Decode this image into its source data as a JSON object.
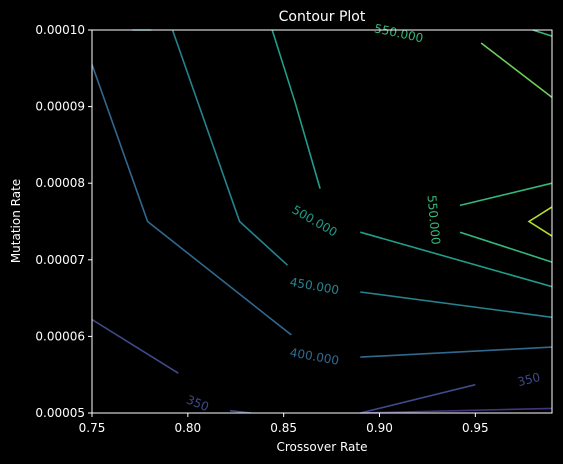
{
  "chart_data": {
    "type": "contour",
    "title": "Contour Plot",
    "xlabel": "Crossover Rate",
    "ylabel": "Mutation Rate",
    "xlim": [
      0.75,
      0.99
    ],
    "ylim": [
      5e-05,
      0.0001
    ],
    "xticks": [
      0.75,
      0.8,
      0.85,
      0.9,
      0.95
    ],
    "xtick_labels": [
      "0.75",
      "0.80",
      "0.85",
      "0.90",
      "0.95"
    ],
    "yticks": [
      5e-05,
      6e-05,
      7e-05,
      8e-05,
      9e-05,
      0.0001
    ],
    "ytick_labels": [
      "0.00005",
      "0.00006",
      "0.00007",
      "0.00008",
      "0.00009",
      "0.00010"
    ],
    "grid": false,
    "background": "#000000",
    "levels": [
      {
        "value": 300,
        "color": "#46337e",
        "segments": [
          [
            [
              0.89,
              5e-05
            ],
            [
              0.99,
              5.06e-05
            ]
          ]
        ]
      },
      {
        "value": 350,
        "color": "#3f4a8a",
        "labels": [
          {
            "text": "350",
            "x": 0.805,
            "y": 5.12e-05,
            "angle": 22
          },
          {
            "text": "350",
            "x": 0.978,
            "y": 5.43e-05,
            "angle": -14
          }
        ],
        "segments": [
          [
            [
              0.75,
              6.22e-05
            ],
            [
              0.795,
              5.52e-05
            ]
          ],
          [
            [
              0.822,
              5.03e-05
            ],
            [
              0.833,
              5e-05
            ]
          ],
          [
            [
              0.89,
              5e-05
            ],
            [
              0.95,
              5.37e-05
            ]
          ]
        ]
      },
      {
        "value": 400,
        "color": "#31688e",
        "labels": [
          {
            "text": "400.000",
            "x": 0.866,
            "y": 5.73e-05,
            "angle": 10
          }
        ],
        "segments": [
          [
            [
              0.75,
              9.55e-05
            ],
            [
              0.779,
              7.5e-05
            ],
            [
              0.854,
              6.02e-05
            ]
          ],
          [
            [
              0.89,
              5.73e-05
            ],
            [
              0.99,
              5.86e-05
            ]
          ]
        ]
      },
      {
        "value": 450,
        "color": "#26828e",
        "labels": [
          {
            "text": "450.000",
            "x": 0.866,
            "y": 6.65e-05,
            "angle": 10
          }
        ],
        "segments": [
          [
            [
              0.771,
              0.0001
            ],
            [
              0.781,
              0.0001
            ]
          ],
          [
            [
              0.792,
              0.0001
            ],
            [
              0.827,
              7.5e-05
            ],
            [
              0.852,
              6.93e-05
            ]
          ],
          [
            [
              0.89,
              6.58e-05
            ],
            [
              0.99,
              6.25e-05
            ]
          ]
        ]
      },
      {
        "value": 500,
        "color": "#1f9e89",
        "labels": [
          {
            "text": "500.000",
            "x": 0.866,
            "y": 7.5e-05,
            "angle": 30
          }
        ],
        "segments": [
          [
            [
              0.844,
              0.0001
            ],
            [
              0.856,
              9.05e-05
            ],
            [
              0.869,
              7.93e-05
            ]
          ],
          [
            [
              0.89,
              7.36e-05
            ],
            [
              0.99,
              6.65e-05
            ]
          ]
        ]
      },
      {
        "value": 550,
        "color": "#35b779",
        "labels": [
          {
            "text": "550.000",
            "x": 0.928,
            "y": 7.52e-05,
            "angle": 85
          },
          {
            "text": "550.000",
            "x": 0.91,
            "y": 9.95e-05,
            "angle": 12
          }
        ],
        "segments": [
          [
            [
              0.942,
              7.36e-05
            ],
            [
              0.99,
              6.97e-05
            ]
          ],
          [
            [
              0.98,
              0.0001
            ],
            [
              0.99,
              9.92e-05
            ]
          ],
          [
            [
              0.942,
              7.71e-05
            ],
            [
              0.99,
              8e-05
            ]
          ]
        ]
      },
      {
        "value": 600,
        "color": "#6ece58",
        "segments": [
          [
            [
              0.953,
              9.83e-05
            ],
            [
              0.99,
              9.12e-05
            ]
          ]
        ]
      },
      {
        "value": 650,
        "color": "#b5de2b",
        "segments": [
          [
            [
              0.99,
              7.69e-05
            ],
            [
              0.978,
              7.5e-05
            ],
            [
              0.99,
              7.31e-05
            ]
          ]
        ]
      }
    ]
  }
}
